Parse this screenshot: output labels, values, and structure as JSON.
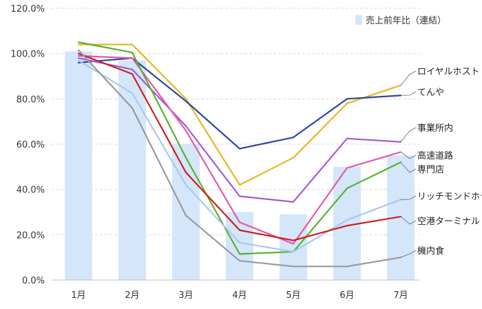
{
  "chart_data": {
    "type": "bar+line",
    "categories": [
      "1月",
      "2月",
      "3月",
      "4月",
      "5月",
      "6月",
      "7月"
    ],
    "ylim": [
      0,
      120
    ],
    "yticks": [
      "0.0%",
      "20.0%",
      "40.0%",
      "60.0%",
      "80.0%",
      "100.0%",
      "120.0%"
    ],
    "grid": true,
    "legend_position": "top-right",
    "bar_series": {
      "name": "売上前年比（連結）",
      "color": "#d4e6fa",
      "values": [
        101,
        97,
        60,
        30,
        29,
        50,
        55
      ]
    },
    "series": [
      {
        "name": "ロイヤルホスト",
        "color": "#e8b620",
        "values": [
          104,
          104,
          80,
          42,
          54,
          78,
          86
        ]
      },
      {
        "name": "てんや",
        "color": "#2e44a0",
        "values": [
          96,
          98,
          79,
          58,
          63,
          80,
          81.5
        ]
      },
      {
        "name": "事業所内",
        "color": "#a25ad6",
        "values": [
          98,
          93,
          68,
          37,
          34.5,
          62.5,
          61
        ]
      },
      {
        "name": "高速道路",
        "color": "#df5aaa",
        "values": [
          99,
          98,
          66,
          25.5,
          16,
          49.5,
          56.5
        ]
      },
      {
        "name": "専門店",
        "color": "#5ab02e",
        "values": [
          105,
          100.5,
          54,
          11.5,
          12.5,
          40.5,
          52
        ]
      },
      {
        "name": "リッチモンドホテル",
        "color": "#a8c8f0",
        "values": [
          97,
          82.5,
          42,
          16.5,
          12.5,
          26.5,
          35.5
        ]
      },
      {
        "name": "空港ターミナル",
        "color": "#cc1f1f",
        "values": [
          100,
          91,
          47.5,
          22,
          17.5,
          24,
          28
        ]
      },
      {
        "name": "機内食",
        "color": "#999999",
        "values": [
          101.5,
          76,
          28.5,
          8.5,
          6,
          6,
          10
        ]
      }
    ]
  }
}
